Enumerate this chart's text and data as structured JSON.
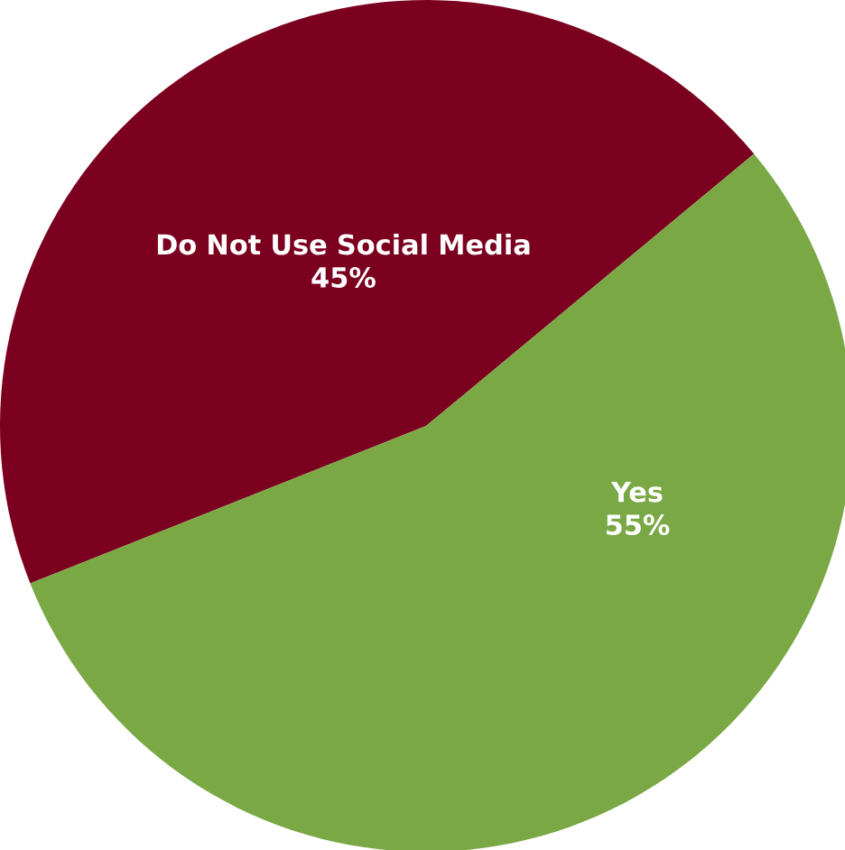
{
  "chart_data": {
    "type": "pie",
    "categories": [
      "Do Not Use Social Media",
      "Yes"
    ],
    "values": [
      45,
      55
    ],
    "colors": [
      "#7b0020",
      "#7aa845"
    ],
    "value_labels": [
      "45%",
      "55%"
    ]
  }
}
